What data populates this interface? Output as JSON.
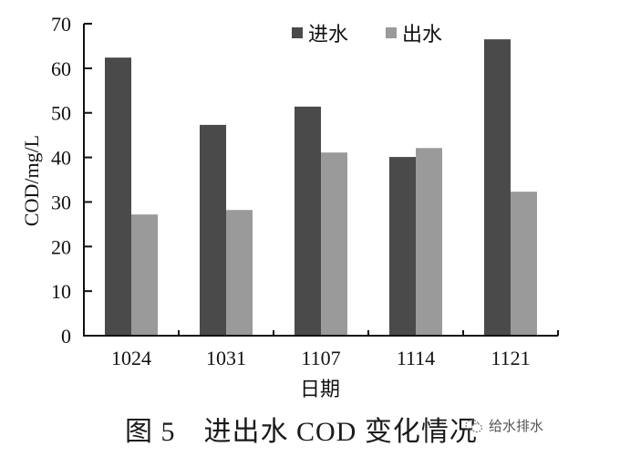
{
  "chart_data": {
    "type": "bar",
    "title": "",
    "xlabel": "日期",
    "ylabel": "COD/mg/L",
    "ylim": [
      0,
      70
    ],
    "yticks": [
      0,
      10,
      20,
      30,
      40,
      50,
      60,
      70
    ],
    "categories": [
      "1024",
      "1031",
      "1107",
      "1114",
      "1121"
    ],
    "series": [
      {
        "name": "进水",
        "color": "#4a4a4a",
        "values": [
          62.4,
          47.3,
          51.4,
          40.1,
          66.5
        ]
      },
      {
        "name": "出水",
        "color": "#9a9a9a",
        "values": [
          27.2,
          28.2,
          41.1,
          42.1,
          32.3
        ]
      }
    ],
    "legend_position": "top-right",
    "grid": false
  },
  "caption": {
    "text": "图 5　进出水 COD 变化情况"
  },
  "watermark": {
    "text": "给水排水",
    "icon": "wechat-icon"
  }
}
